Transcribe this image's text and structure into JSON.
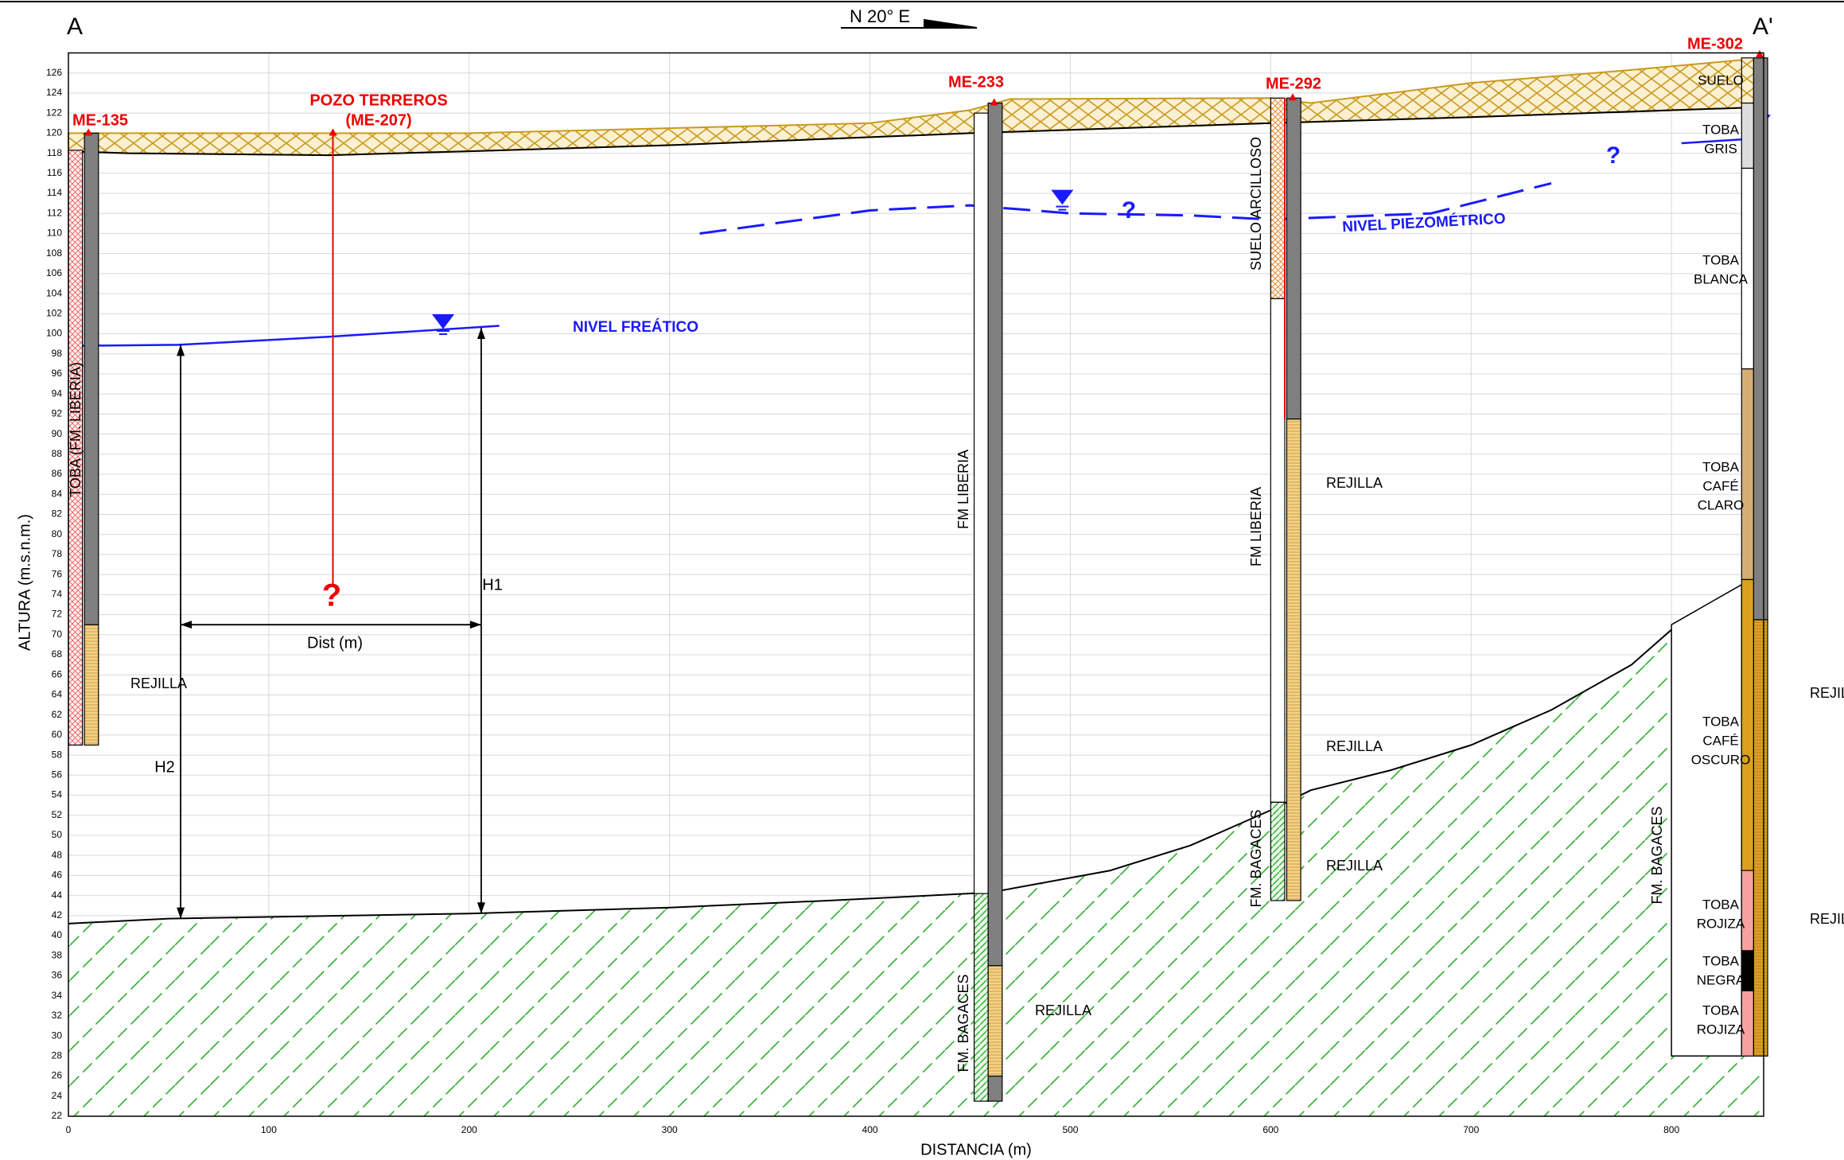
{
  "header": {
    "left": "A",
    "right": "A'",
    "bearing": "N 20° E"
  },
  "axes": {
    "x_label": "DISTANCIA (m)",
    "y_label": "ALTURA (m.s.n.m.)",
    "xlim": [
      0,
      846
    ],
    "ylim": [
      22,
      128
    ],
    "xticks": [
      0,
      100,
      200,
      300,
      400,
      500,
      600,
      700,
      800
    ],
    "yticks": [
      22,
      24,
      26,
      28,
      30,
      32,
      34,
      36,
      38,
      40,
      42,
      44,
      46,
      48,
      50,
      52,
      54,
      56,
      58,
      60,
      62,
      64,
      66,
      68,
      70,
      72,
      74,
      76,
      78,
      80,
      82,
      84,
      86,
      88,
      90,
      92,
      94,
      96,
      98,
      100,
      102,
      104,
      106,
      108,
      110,
      112,
      114,
      116,
      118,
      120,
      122,
      124,
      126
    ]
  },
  "wells": [
    [
      "ME-135"
    ],
    [
      "POZO TERREROS",
      "(ME-207)"
    ],
    [
      "ME-233"
    ],
    [
      "ME-292"
    ],
    [
      "ME-302"
    ]
  ],
  "annotations": [
    "NIVEL FREÁTICO",
    "NIVEL PIEZOMÉTRICO",
    "?",
    "?",
    "?",
    "H1",
    "H2",
    "Dist (m)",
    "REJILLA",
    "REJILLA",
    "REJILLA",
    "REJILLA",
    "REJILLA",
    "REJILLA",
    "REJILLA",
    "TOBA (FM. LIBERIA)",
    "FM LIBERIA",
    "SUELO ARCILLOSO",
    "FM LIBERIA",
    "FM. BAGACES",
    "FM. BAGACES",
    "FM. BAGACES"
  ],
  "layers": [
    [
      "SUELO"
    ],
    [
      "TOBA",
      "GRIS"
    ],
    [
      "TOBA",
      "BLANCA"
    ],
    [
      "TOBA",
      "CAFÉ",
      "CLARO"
    ],
    [
      "TOBA",
      "CAFÉ",
      "OSCURO"
    ],
    [
      "TOBA",
      "ROJIZA"
    ],
    [
      "TOBA",
      "NEGRA"
    ],
    [
      "TOBA",
      "ROJIZA"
    ]
  ]
}
